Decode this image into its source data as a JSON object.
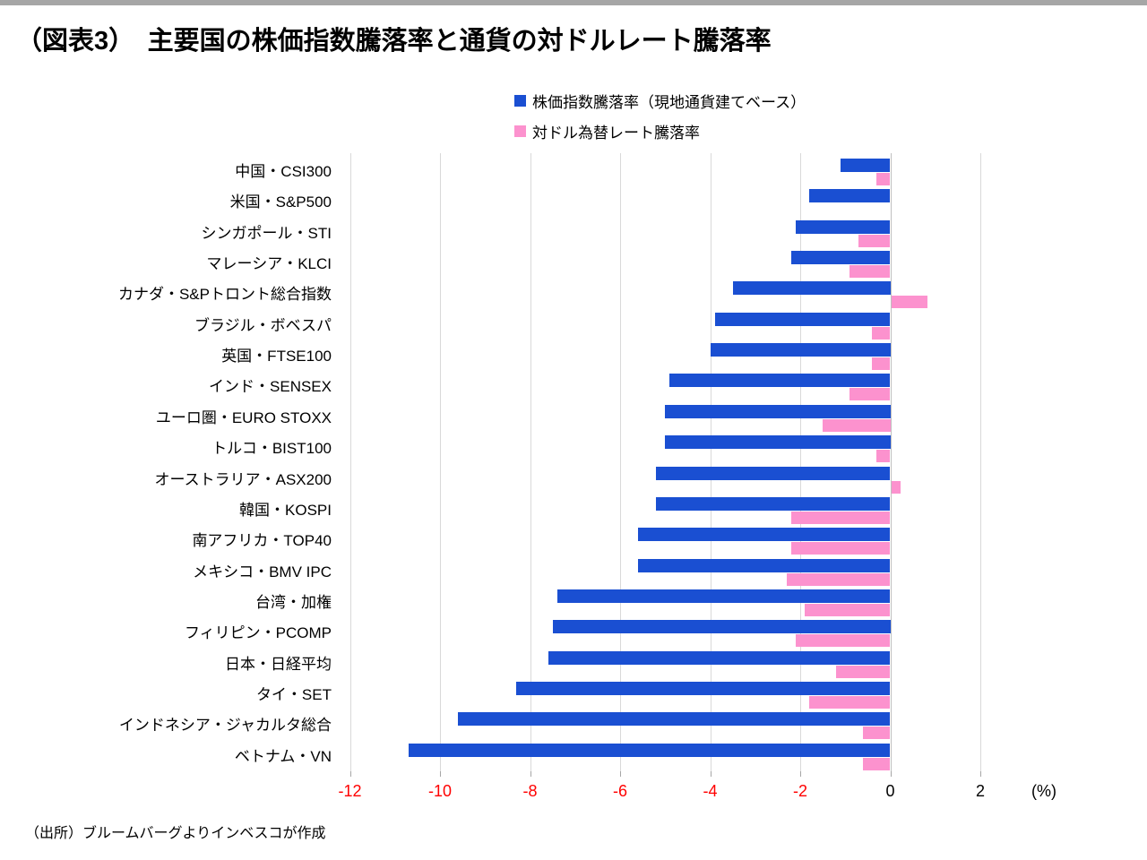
{
  "page": {
    "title": "（図表3）　主要国の株価指数騰落率と通貨の対ドルレート騰落率",
    "source": "（出所）ブルームバーグよりインベスコが作成"
  },
  "legend": [
    {
      "label": "株価指数騰落率（現地通貨建てベース）",
      "color": "#1a4fd2"
    },
    {
      "label": "対ドル為替レート騰落率",
      "color": "#fc92ce"
    }
  ],
  "chart_data": {
    "type": "bar",
    "orientation": "horizontal",
    "title": "（図表3）　主要国の株価指数騰落率と通貨の対ドルレート騰落率",
    "xlabel": "(%)",
    "xlim": [
      -12.6,
      2.9
    ],
    "x_ticks": [
      -12,
      -10,
      -8,
      -6,
      -4,
      -2,
      0,
      2
    ],
    "grid": "vertical",
    "legend_position": "top",
    "tick_color_negative": "#ff0000",
    "tick_color_nonnegative": "#000000",
    "gridline_color": "#d9d9d9",
    "categories": [
      "中国・CSI300",
      "米国・S&P500",
      "シンガポール・STI",
      "マレーシア・KLCI",
      "カナダ・S&Pトロント総合指数",
      "ブラジル・ボベスパ",
      "英国・FTSE100",
      "インド・SENSEX",
      "ユーロ圏・EURO STOXX",
      "トルコ・BIST100",
      "オーストラリア・ASX200",
      "韓国・KOSPI",
      "南アフリカ・TOP40",
      "メキシコ・BMV IPC",
      "台湾・加権",
      "フィリピン・PCOMP",
      "日本・日経平均",
      "タイ・SET",
      "インドネシア・ジャカルタ総合",
      "ベトナム・VN"
    ],
    "series": [
      {
        "name": "株価指数騰落率（現地通貨建てベース）",
        "color": "#1a4fd2",
        "values": [
          -1.1,
          -1.8,
          -2.1,
          -2.2,
          -3.5,
          -3.9,
          -4.0,
          -4.9,
          -5.0,
          -5.0,
          -5.2,
          -5.2,
          -5.6,
          -5.6,
          -7.4,
          -7.5,
          -7.6,
          -8.3,
          -9.6,
          -10.7
        ]
      },
      {
        "name": "対ドル為替レート騰落率",
        "color": "#fc92ce",
        "values": [
          -0.3,
          0.0,
          -0.7,
          -0.9,
          0.8,
          -0.4,
          -0.4,
          -0.9,
          -1.5,
          -0.3,
          0.2,
          -2.2,
          -2.2,
          -2.3,
          -1.9,
          -2.1,
          -1.2,
          -1.8,
          -0.6,
          -0.6
        ]
      }
    ]
  }
}
